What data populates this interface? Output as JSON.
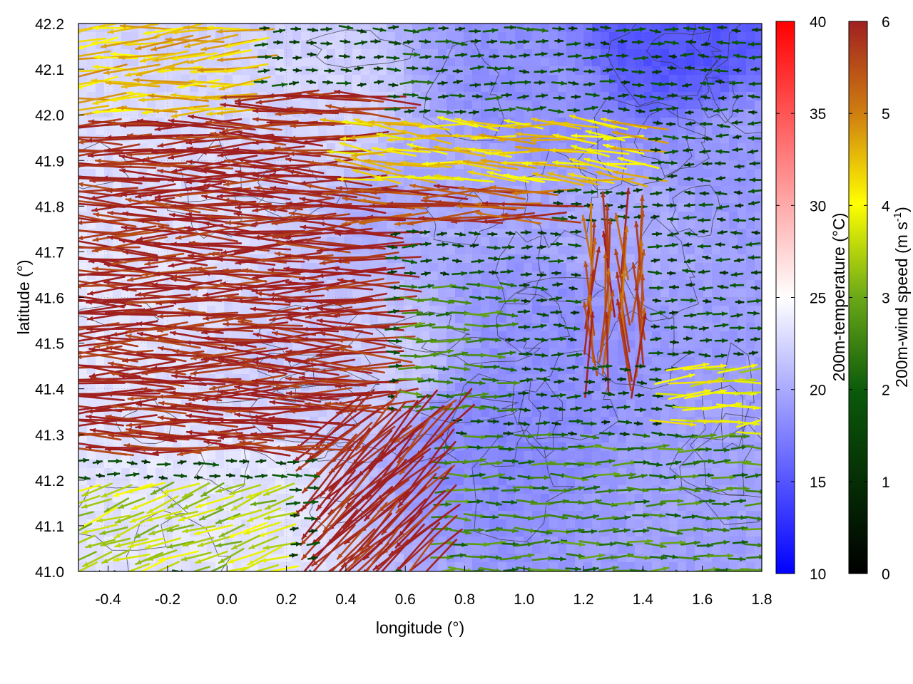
{
  "chart_data": {
    "type": "vector-field-heatmap",
    "title": "",
    "xlabel": "longitude (°)",
    "ylabel": "latitude (°)",
    "xlim": [
      -0.5,
      1.8
    ],
    "ylim": [
      41.0,
      42.2
    ],
    "xticks": [
      "-0.4",
      "-0.2",
      "0.0",
      "0.2",
      "0.4",
      "0.6",
      "0.8",
      "1.0",
      "1.2",
      "1.4",
      "1.6",
      "1.8"
    ],
    "yticks": [
      "41.0",
      "41.1",
      "41.2",
      "41.3",
      "41.4",
      "41.5",
      "41.6",
      "41.7",
      "41.8",
      "41.9",
      "42.0",
      "42.1",
      "42.2"
    ],
    "grid": true,
    "colorbars": [
      {
        "name": "temperature",
        "label": "200m-temperature (°C)",
        "range": [
          10,
          40
        ],
        "ticks": [
          "10",
          "15",
          "20",
          "25",
          "30",
          "35",
          "40"
        ],
        "colors": [
          "#0000ff",
          "#ffffff",
          "#ff0000"
        ]
      },
      {
        "name": "wind",
        "label_main": "200m-wind speed (m s",
        "label_sup": "-1",
        "label_end": ")",
        "range": [
          0,
          6
        ],
        "ticks": [
          "0",
          "1",
          "2",
          "3",
          "4",
          "5",
          "6"
        ],
        "colors": [
          "#000000",
          "#0a5a0a",
          "#6aa818",
          "#ffff00",
          "#d08010",
          "#a02020"
        ]
      }
    ],
    "temperature_field": {
      "description_points": [
        {
          "lon": -0.45,
          "lat": 41.6,
          "t": 23.5
        },
        {
          "lon": -0.2,
          "lat": 41.8,
          "t": 23.0
        },
        {
          "lon": 0.0,
          "lat": 41.15,
          "t": 23.5
        },
        {
          "lon": 0.3,
          "lat": 42.0,
          "t": 22.5
        },
        {
          "lon": 0.45,
          "lat": 41.45,
          "t": 22.0
        },
        {
          "lon": 0.7,
          "lat": 41.85,
          "t": 20.0
        },
        {
          "lon": 0.9,
          "lat": 41.3,
          "t": 18.0
        },
        {
          "lon": 1.0,
          "lat": 42.05,
          "t": 18.5
        },
        {
          "lon": 1.1,
          "lat": 41.55,
          "t": 18.5
        },
        {
          "lon": 1.3,
          "lat": 41.75,
          "t": 20.0
        },
        {
          "lon": 1.5,
          "lat": 42.15,
          "t": 15.0
        },
        {
          "lon": 1.65,
          "lat": 41.2,
          "t": 19.5
        },
        {
          "lon": 1.75,
          "lat": 41.9,
          "t": 19.0
        }
      ]
    },
    "wind_field": {
      "regions": [
        {
          "lon_min": -0.5,
          "lon_max": 0.55,
          "lat_min": 41.25,
          "lat_max": 42.05,
          "speed": 6.0,
          "direction_deg": 180
        },
        {
          "lon_min": 0.3,
          "lon_max": 0.75,
          "lat_min": 41.0,
          "lat_max": 41.35,
          "speed": 6.0,
          "direction_deg": 225
        },
        {
          "lon_min": 0.5,
          "lon_max": 1.1,
          "lat_min": 41.75,
          "lat_max": 41.9,
          "speed": 5.5,
          "direction_deg": 180
        },
        {
          "lon_min": -0.5,
          "lon_max": 0.1,
          "lat_min": 42.0,
          "lat_max": 42.2,
          "speed": 4.5,
          "direction_deg": 185
        },
        {
          "lon_min": 0.4,
          "lon_max": 1.4,
          "lat_min": 41.85,
          "lat_max": 42.0,
          "speed": 4.3,
          "direction_deg": 175
        },
        {
          "lon_min": 0.6,
          "lon_max": 1.1,
          "lat_min": 42.0,
          "lat_max": 42.2,
          "speed": 1.8,
          "direction_deg": 0
        },
        {
          "lon_min": 0.6,
          "lon_max": 0.95,
          "lat_min": 41.35,
          "lat_max": 41.65,
          "speed": 2.5,
          "direction_deg": 0
        },
        {
          "lon_min": 1.2,
          "lon_max": 1.4,
          "lat_min": 41.45,
          "lat_max": 41.75,
          "speed": 5.5,
          "direction_deg": 90
        },
        {
          "lon_min": 0.7,
          "lon_max": 1.8,
          "lat_min": 41.0,
          "lat_max": 41.3,
          "speed": 2.5,
          "direction_deg": 0
        },
        {
          "lon_min": 1.5,
          "lon_max": 1.8,
          "lat_min": 41.3,
          "lat_max": 41.45,
          "speed": 3.8,
          "direction_deg": 5
        },
        {
          "lon_min": 1.5,
          "lon_max": 1.8,
          "lat_min": 41.6,
          "lat_max": 42.2,
          "speed": 1.5,
          "direction_deg": 180
        },
        {
          "lon_min": -0.5,
          "lon_max": 0.2,
          "lat_min": 41.0,
          "lat_max": 41.2,
          "speed": 3.5,
          "direction_deg": 200
        }
      ]
    }
  }
}
